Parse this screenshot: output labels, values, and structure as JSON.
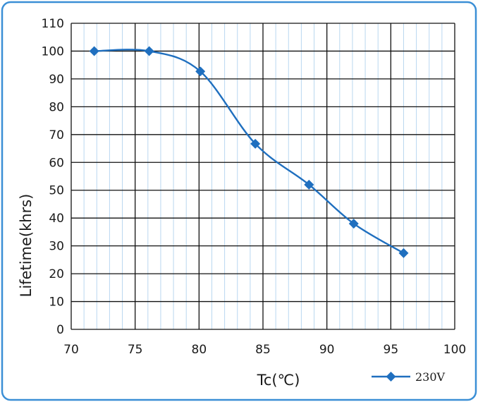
{
  "chart_data": {
    "type": "line",
    "title": "",
    "xlabel": "Tc(℃)",
    "ylabel": "Lifetime(khrs)",
    "xlim": [
      70,
      100
    ],
    "ylim": [
      0,
      110
    ],
    "x_ticks": [
      "70",
      "75",
      "80",
      "85",
      "90",
      "95",
      "100"
    ],
    "y_ticks": [
      "0",
      "10",
      "20",
      "30",
      "40",
      "50",
      "60",
      "70",
      "80",
      "90",
      "100",
      "110"
    ],
    "grid": true,
    "legend_position": "bottom-right",
    "series": [
      {
        "name": "230V",
        "color": "#1f6fbf",
        "marker": "diamond",
        "smooth": true,
        "x": [
          71.8,
          76.1,
          80.1,
          84.4,
          88.6,
          92.1,
          96.0
        ],
        "y": [
          100,
          100,
          92.7,
          66.7,
          52,
          38,
          27.4
        ]
      }
    ]
  },
  "colors": {
    "frame": "#3b8fd6",
    "grid_major": "#111111",
    "grid_minor": "#b9d7f0",
    "series": "#1f6fbf"
  }
}
